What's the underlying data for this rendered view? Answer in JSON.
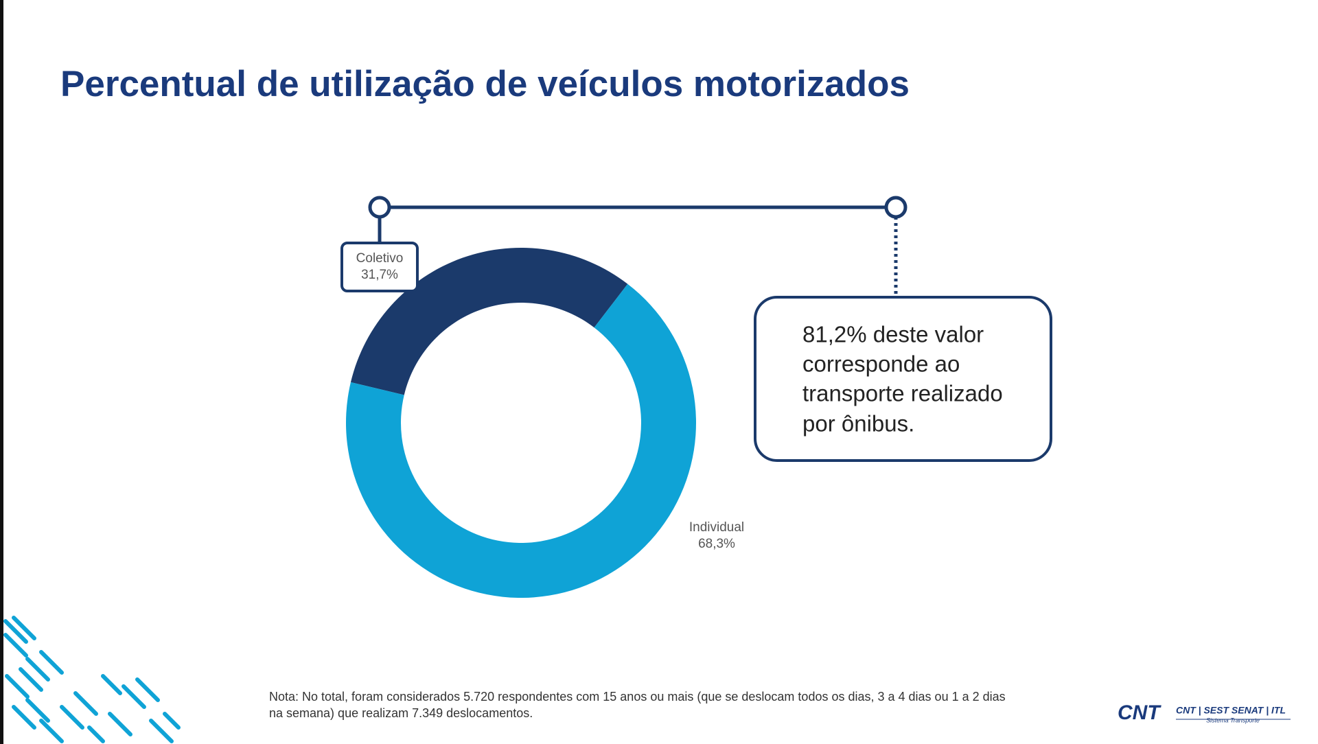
{
  "chart_data": {
    "type": "donut",
    "title": "Percentual de utilização de veículos motorizados",
    "categories": [
      "Coletivo",
      "Individual"
    ],
    "values": [
      31.7,
      68.3
    ],
    "value_labels": [
      "31,7%",
      "68,3%"
    ],
    "colors": [
      "#1b3a6b",
      "#0fa3d6"
    ]
  },
  "callout": {
    "lines": [
      "81,2% deste valor",
      "corresponde ao",
      "transporte realizado",
      "por ônibus."
    ]
  },
  "note": {
    "lines": [
      "Nota: No total, foram considerados 5.720 respondentes com 15 anos ou mais (que se deslocam todos os dias, 3 a 4 dias ou 1 a 2 dias",
      "na semana) que realizam 7.349 deslocamentos."
    ]
  },
  "logo": {
    "main": "CNT",
    "group": "CNT | SEST SENAT | ITL",
    "tagline": "Sistema Transporte"
  }
}
